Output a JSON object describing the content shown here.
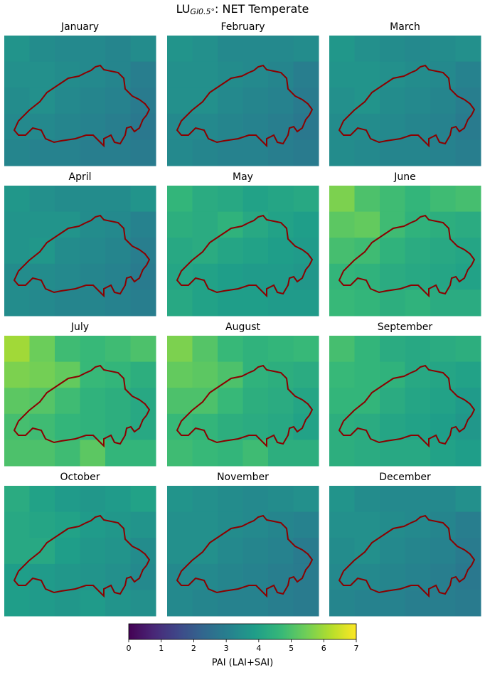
{
  "chart_data": {
    "type": "heatmap",
    "title": "LU",
    "title_subscript": "Gl0.5°",
    "title_suffix": ": NET Temperate",
    "cmap": "viridis",
    "clim": [
      0,
      7
    ],
    "cticks": [
      0,
      1,
      2,
      3,
      4,
      5,
      6,
      7
    ],
    "colorbar_label": "PAI (LAI+SAI)",
    "outline_color": "#8b0000",
    "panels": [
      {
        "title": "January",
        "values": [
          [
            3.6,
            3.4,
            3.3,
            3.3,
            3.2,
            3.4
          ],
          [
            3.5,
            3.5,
            3.4,
            3.3,
            3.2,
            3.0
          ],
          [
            3.4,
            3.5,
            3.3,
            3.2,
            3.1,
            2.9
          ],
          [
            3.3,
            3.3,
            3.2,
            3.1,
            3.0,
            2.8
          ],
          [
            3.2,
            3.1,
            3.1,
            3.0,
            3.0,
            2.9
          ]
        ]
      },
      {
        "title": "February",
        "values": [
          [
            3.6,
            3.5,
            3.3,
            3.3,
            3.3,
            3.4
          ],
          [
            3.5,
            3.5,
            3.4,
            3.3,
            3.2,
            3.0
          ],
          [
            3.5,
            3.5,
            3.3,
            3.2,
            3.1,
            2.9
          ],
          [
            3.3,
            3.3,
            3.2,
            3.1,
            3.0,
            2.8
          ],
          [
            3.3,
            3.2,
            3.1,
            3.1,
            3.0,
            2.9
          ]
        ]
      },
      {
        "title": "March",
        "values": [
          [
            3.7,
            3.5,
            3.4,
            3.3,
            3.4,
            3.5
          ],
          [
            3.6,
            3.6,
            3.5,
            3.4,
            3.3,
            3.1
          ],
          [
            3.5,
            3.6,
            3.4,
            3.3,
            3.2,
            3.0
          ],
          [
            3.4,
            3.4,
            3.3,
            3.2,
            3.1,
            2.9
          ],
          [
            3.4,
            3.3,
            3.2,
            3.2,
            3.1,
            3.0
          ]
        ]
      },
      {
        "title": "April",
        "values": [
          [
            3.7,
            3.5,
            3.4,
            3.4,
            3.4,
            3.6
          ],
          [
            3.6,
            3.6,
            3.6,
            3.4,
            3.3,
            3.1
          ],
          [
            3.6,
            3.7,
            3.4,
            3.3,
            3.2,
            3.0
          ],
          [
            3.4,
            3.4,
            3.3,
            3.2,
            3.1,
            2.9
          ],
          [
            3.4,
            3.3,
            3.2,
            3.2,
            3.1,
            3.0
          ]
        ]
      },
      {
        "title": "May",
        "values": [
          [
            4.6,
            4.3,
            4.2,
            4.0,
            4.1,
            4.2
          ],
          [
            4.4,
            4.3,
            4.5,
            4.2,
            4.0,
            3.9
          ],
          [
            4.2,
            4.3,
            4.1,
            4.0,
            3.9,
            3.8
          ],
          [
            4.1,
            4.0,
            3.9,
            3.8,
            3.8,
            3.7
          ],
          [
            4.2,
            4.0,
            3.9,
            3.9,
            3.8,
            3.8
          ]
        ]
      },
      {
        "title": "June",
        "values": [
          [
            5.6,
            5.0,
            4.8,
            4.6,
            4.8,
            4.9
          ],
          [
            5.2,
            5.3,
            4.8,
            4.5,
            4.4,
            4.3
          ],
          [
            4.9,
            4.8,
            4.5,
            4.3,
            4.2,
            4.1
          ],
          [
            4.6,
            4.5,
            4.3,
            4.2,
            4.1,
            4.0
          ],
          [
            4.7,
            4.6,
            4.4,
            4.5,
            4.3,
            4.3
          ]
        ]
      },
      {
        "title": "July",
        "values": [
          [
            6.0,
            5.4,
            4.8,
            4.7,
            4.8,
            5.0
          ],
          [
            5.6,
            5.5,
            5.3,
            4.7,
            4.6,
            4.4
          ],
          [
            5.2,
            5.1,
            4.8,
            4.5,
            4.4,
            4.2
          ],
          [
            4.9,
            4.8,
            4.6,
            4.5,
            4.4,
            4.2
          ],
          [
            5.0,
            5.0,
            4.8,
            5.2,
            4.6,
            4.6
          ]
        ]
      },
      {
        "title": "August",
        "values": [
          [
            5.6,
            5.1,
            4.7,
            4.5,
            4.6,
            4.7
          ],
          [
            5.3,
            5.2,
            5.0,
            4.5,
            4.4,
            4.3
          ],
          [
            5.0,
            5.0,
            4.7,
            4.4,
            4.3,
            4.1
          ],
          [
            4.7,
            4.6,
            4.4,
            4.3,
            4.2,
            4.0
          ],
          [
            4.8,
            4.7,
            4.6,
            4.8,
            4.4,
            4.4
          ]
        ]
      },
      {
        "title": "September",
        "values": [
          [
            4.9,
            4.6,
            4.3,
            4.2,
            4.3,
            4.4
          ],
          [
            4.7,
            4.6,
            4.5,
            4.2,
            4.1,
            4.0
          ],
          [
            4.6,
            4.6,
            4.3,
            4.1,
            4.0,
            3.8
          ],
          [
            4.4,
            4.3,
            4.1,
            4.0,
            3.9,
            3.7
          ],
          [
            4.4,
            4.3,
            4.2,
            4.2,
            4.0,
            3.9
          ]
        ]
      },
      {
        "title": "October",
        "values": [
          [
            4.3,
            4.0,
            3.8,
            3.7,
            3.8,
            4.0
          ],
          [
            4.2,
            4.1,
            4.0,
            3.8,
            3.7,
            3.6
          ],
          [
            4.2,
            4.2,
            3.9,
            3.7,
            3.6,
            3.4
          ],
          [
            3.9,
            3.8,
            3.7,
            3.6,
            3.5,
            3.3
          ],
          [
            3.9,
            3.8,
            3.7,
            3.8,
            3.6,
            3.5
          ]
        ]
      },
      {
        "title": "November",
        "values": [
          [
            3.6,
            3.5,
            3.4,
            3.3,
            3.4,
            3.5
          ],
          [
            3.5,
            3.5,
            3.4,
            3.3,
            3.2,
            3.1
          ],
          [
            3.5,
            3.5,
            3.3,
            3.2,
            3.1,
            2.9
          ],
          [
            3.3,
            3.3,
            3.2,
            3.1,
            3.0,
            2.9
          ],
          [
            3.3,
            3.2,
            3.1,
            3.1,
            3.0,
            2.9
          ]
        ]
      },
      {
        "title": "December",
        "values": [
          [
            3.6,
            3.4,
            3.3,
            3.3,
            3.3,
            3.5
          ],
          [
            3.5,
            3.5,
            3.4,
            3.3,
            3.2,
            3.0
          ],
          [
            3.4,
            3.5,
            3.3,
            3.2,
            3.1,
            2.9
          ],
          [
            3.3,
            3.3,
            3.2,
            3.1,
            3.0,
            2.8
          ],
          [
            3.2,
            3.1,
            3.1,
            3.0,
            3.0,
            2.9
          ]
        ]
      }
    ]
  }
}
